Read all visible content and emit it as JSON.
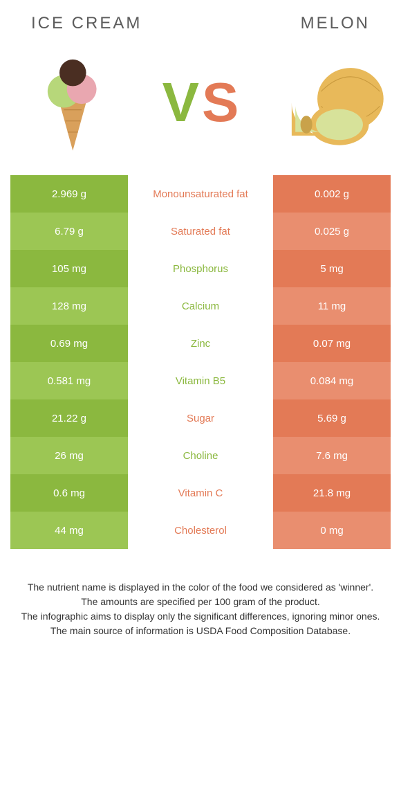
{
  "header": {
    "left_title": "ICE CREAM",
    "right_title": "MELON",
    "vs_v": "V",
    "vs_s": "S"
  },
  "colors": {
    "left_primary": "#8bb83f",
    "left_alt": "#9cc654",
    "right_primary": "#e37a56",
    "right_alt": "#e98e6f",
    "mid_bg": "#ffffff",
    "title_text": "#5c5c5c",
    "note_text": "#333333"
  },
  "rows": [
    {
      "label": "Monounsaturated fat",
      "left": "2.969 g",
      "right": "0.002 g",
      "winner": "right"
    },
    {
      "label": "Saturated fat",
      "left": "6.79 g",
      "right": "0.025 g",
      "winner": "right"
    },
    {
      "label": "Phosphorus",
      "left": "105 mg",
      "right": "5 mg",
      "winner": "left"
    },
    {
      "label": "Calcium",
      "left": "128 mg",
      "right": "11 mg",
      "winner": "left"
    },
    {
      "label": "Zinc",
      "left": "0.69 mg",
      "right": "0.07 mg",
      "winner": "left"
    },
    {
      "label": "Vitamin B5",
      "left": "0.581 mg",
      "right": "0.084 mg",
      "winner": "left"
    },
    {
      "label": "Sugar",
      "left": "21.22 g",
      "right": "5.69 g",
      "winner": "right"
    },
    {
      "label": "Choline",
      "left": "26 mg",
      "right": "7.6 mg",
      "winner": "left"
    },
    {
      "label": "Vitamin C",
      "left": "0.6 mg",
      "right": "21.8 mg",
      "winner": "right"
    },
    {
      "label": "Cholesterol",
      "left": "44 mg",
      "right": "0 mg",
      "winner": "right"
    }
  ],
  "notes": [
    "The nutrient name is displayed in the color of the food we considered as 'winner'.",
    "The amounts are specified per 100 gram of the product.",
    "The infographic aims to display only the significant differences, ignoring minor ones.",
    "The main source of information is USDA Food Composition Database."
  ]
}
